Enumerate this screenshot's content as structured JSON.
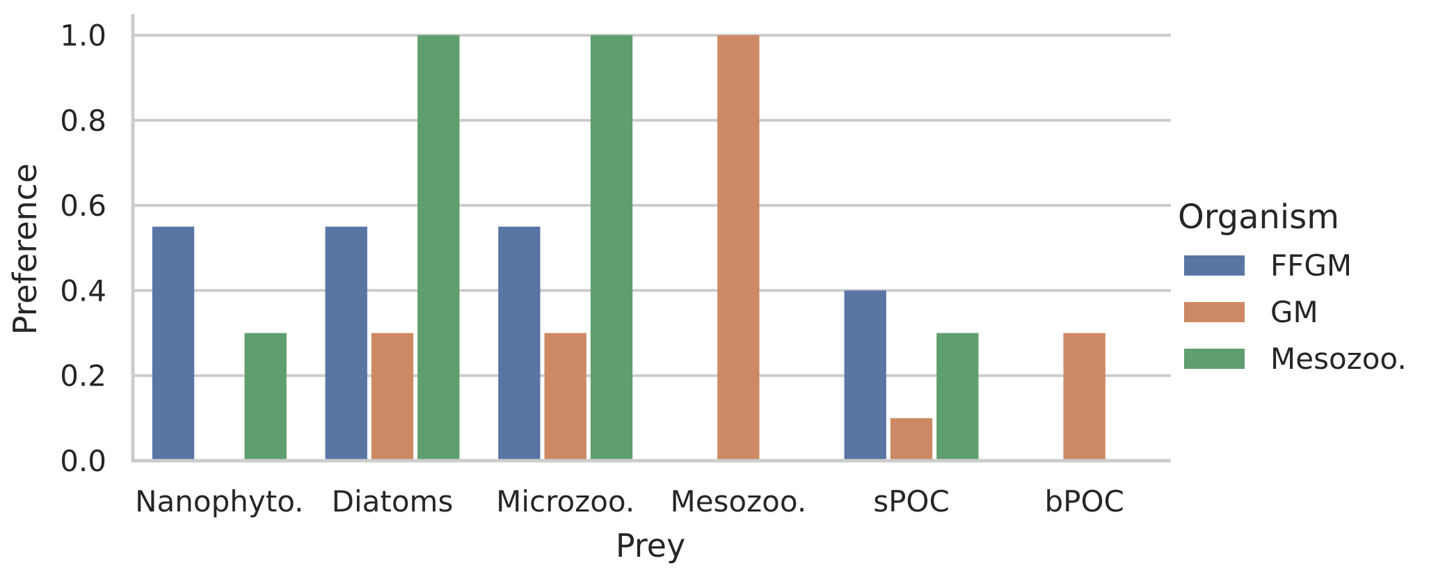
{
  "chart_data": {
    "type": "bar",
    "title": "",
    "xlabel": "Prey",
    "ylabel": "Preference",
    "ylim": [
      0,
      1.05
    ],
    "yticks": [
      "0.0",
      "0.2",
      "0.4",
      "0.6",
      "0.8",
      "1.0"
    ],
    "grid": true,
    "legend": {
      "title": "Organism",
      "placement": "right"
    },
    "categories": [
      "Nanophyto.",
      "Diatoms",
      "Microzoo.",
      "Mesozoo.",
      "sPOC",
      "bPOC"
    ],
    "series": [
      {
        "name": "FFGM",
        "color": "#5875a4",
        "values": [
          0.55,
          0.55,
          0.55,
          0,
          0.4,
          0
        ]
      },
      {
        "name": "GM",
        "color": "#cc8963",
        "values": [
          0,
          0.3,
          0.3,
          1.0,
          0.1,
          0.3
        ]
      },
      {
        "name": "Mesozoo.",
        "color": "#5f9e6e",
        "values": [
          0.3,
          1.0,
          1.0,
          0,
          0.3,
          0
        ]
      }
    ]
  }
}
